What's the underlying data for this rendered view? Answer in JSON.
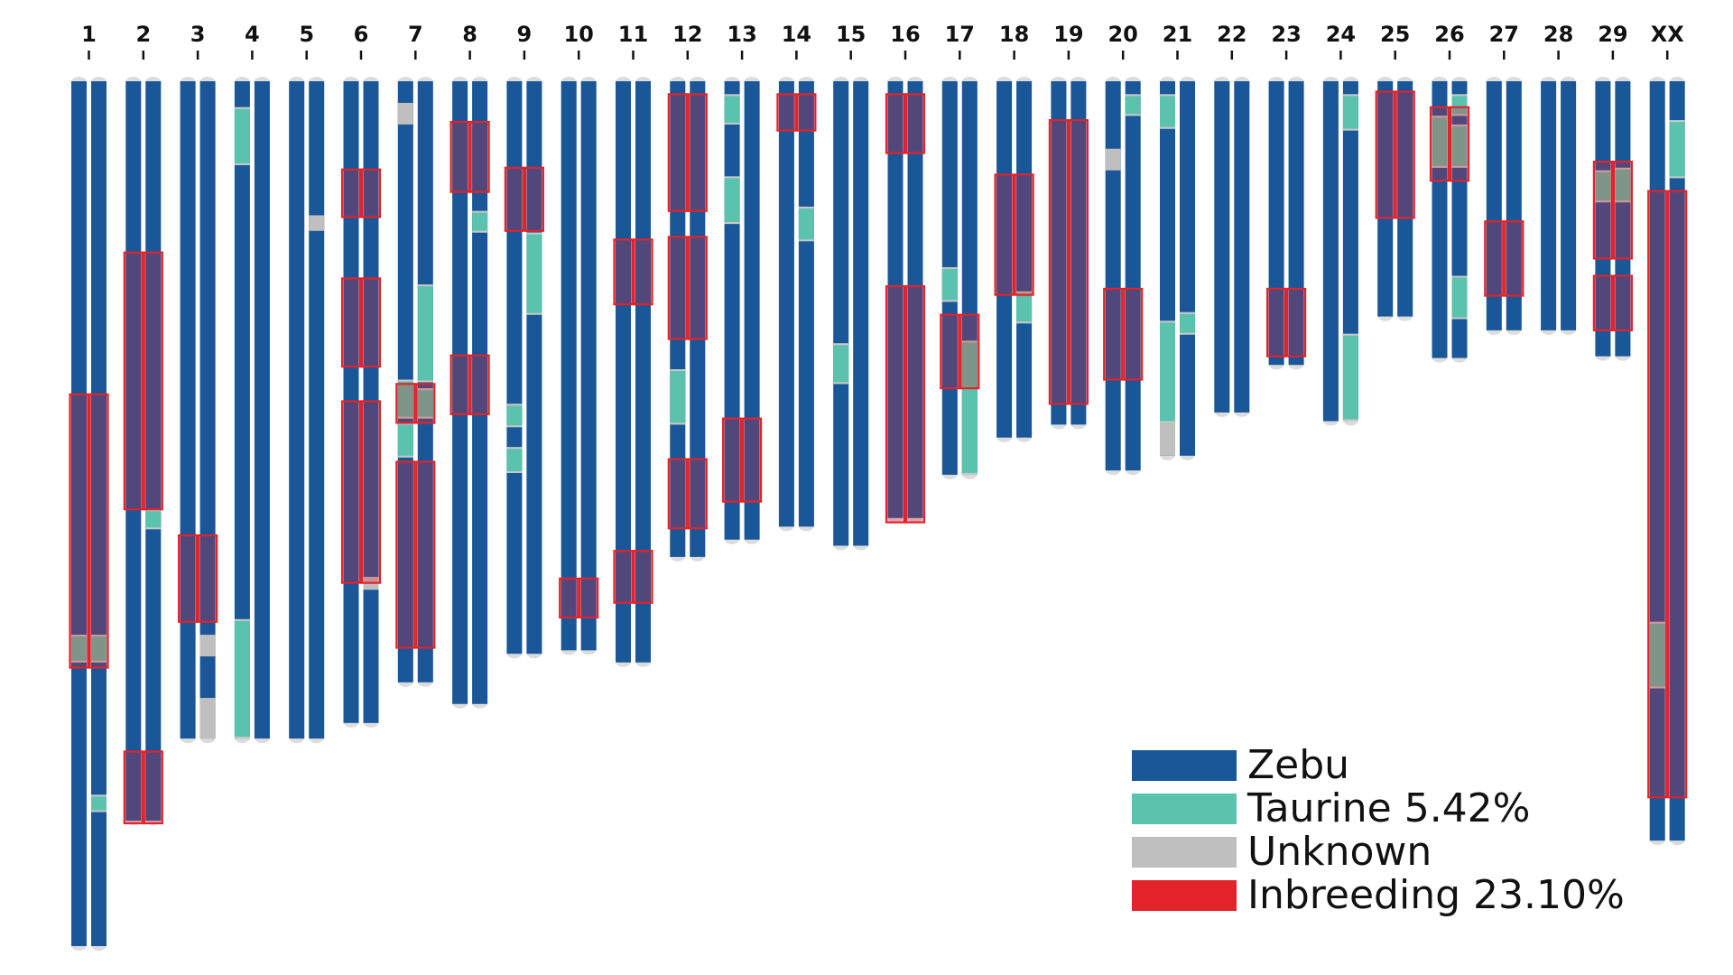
{
  "chart_data": {
    "type": "karyogram",
    "title": "",
    "units": "fraction of longest chromosome (0 = top, 1 = bottom)",
    "colors": {
      "zebu": "#1a5799",
      "taurine": "#5bc2ad",
      "unknown": "#bfbfbf",
      "inbreeding": "#e3222a",
      "cap": "#dcdcdc"
    },
    "legend": [
      {
        "key": "zebu",
        "label": "Zebu"
      },
      {
        "key": "taurine",
        "label": "Taurine 5.42%"
      },
      {
        "key": "unknown",
        "label": "Unknown"
      },
      {
        "key": "inbreeding",
        "label": "Inbreeding 23.10%"
      }
    ],
    "chromosomes": [
      {
        "label": "1",
        "length": 1.0,
        "hap": [
          [
            {
              "s": 0.64,
              "e": 0.672,
              "t": "taurine"
            }
          ],
          [
            {
              "s": 0.64,
              "e": 0.672,
              "t": "taurine"
            },
            {
              "s": 0.825,
              "e": 0.845,
              "t": "taurine"
            }
          ]
        ],
        "roh": [
          [
            0.362,
            0.678
          ]
        ]
      },
      {
        "label": "2",
        "length": 0.855,
        "hap": [
          [],
          [
            {
              "s": 0.495,
              "e": 0.518,
              "t": "taurine"
            }
          ]
        ],
        "roh": [
          [
            0.198,
            0.495
          ],
          [
            0.775,
            0.858
          ]
        ]
      },
      {
        "label": "3",
        "length": 0.76,
        "hap": [
          [],
          [
            {
              "s": 0.64,
              "e": 0.665,
              "t": "unknown"
            },
            {
              "s": 0.713,
              "e": 0.76,
              "t": "unknown"
            }
          ]
        ],
        "roh": [
          [
            0.525,
            0.625
          ]
        ]
      },
      {
        "label": "4",
        "length": 0.76,
        "hap": [
          [
            {
              "s": 0.03,
              "e": 0.097,
              "t": "taurine"
            },
            {
              "s": 0.622,
              "e": 0.76,
              "t": "taurine"
            }
          ],
          []
        ],
        "roh": []
      },
      {
        "label": "5",
        "length": 0.76,
        "hap": [
          [],
          [
            {
              "s": 0.155,
              "e": 0.173,
              "t": "unknown"
            }
          ]
        ],
        "roh": []
      },
      {
        "label": "6",
        "length": 0.742,
        "hap": [
          [],
          [
            {
              "s": 0.573,
              "e": 0.588,
              "t": "unknown"
            }
          ]
        ],
        "roh": [
          [
            0.102,
            0.157
          ],
          [
            0.228,
            0.33
          ],
          [
            0.37,
            0.58
          ]
        ]
      },
      {
        "label": "7",
        "length": 0.695,
        "hap": [
          [
            {
              "s": 0.025,
              "e": 0.05,
              "t": "unknown"
            },
            {
              "s": 0.345,
              "e": 0.39,
              "t": "taurine"
            },
            {
              "s": 0.395,
              "e": 0.435,
              "t": "taurine"
            }
          ],
          [
            {
              "s": 0.235,
              "e": 0.348,
              "t": "taurine"
            },
            {
              "s": 0.355,
              "e": 0.39,
              "t": "taurine"
            }
          ]
        ],
        "roh": [
          [
            0.35,
            0.395
          ],
          [
            0.44,
            0.655
          ]
        ]
      },
      {
        "label": "8",
        "length": 0.72,
        "hap": [
          [],
          [
            {
              "s": 0.15,
              "e": 0.175,
              "t": "taurine"
            }
          ]
        ],
        "roh": [
          [
            0.047,
            0.128
          ],
          [
            0.317,
            0.385
          ]
        ]
      },
      {
        "label": "9",
        "length": 0.662,
        "hap": [
          [
            {
              "s": 0.373,
              "e": 0.4,
              "t": "taurine"
            },
            {
              "s": 0.423,
              "e": 0.453,
              "t": "taurine"
            }
          ],
          [
            {
              "s": 0.175,
              "e": 0.27,
              "t": "taurine"
            }
          ]
        ],
        "roh": [
          [
            0.1,
            0.173
          ]
        ]
      },
      {
        "label": "10",
        "length": 0.658,
        "hap": [
          [],
          []
        ],
        "roh": [
          [
            0.575,
            0.62
          ]
        ]
      },
      {
        "label": "11",
        "length": 0.672,
        "hap": [
          [],
          []
        ],
        "roh": [
          [
            0.183,
            0.258
          ],
          [
            0.543,
            0.603
          ]
        ]
      },
      {
        "label": "12",
        "length": 0.55,
        "hap": [
          [
            {
              "s": 0.333,
              "e": 0.397,
              "t": "taurine"
            }
          ],
          []
        ],
        "roh": [
          [
            0.015,
            0.15
          ],
          [
            0.18,
            0.298
          ],
          [
            0.437,
            0.517
          ]
        ]
      },
      {
        "label": "13",
        "length": 0.53,
        "hap": [
          [
            {
              "s": 0.015,
              "e": 0.05,
              "t": "taurine"
            },
            {
              "s": 0.11,
              "e": 0.165,
              "t": "taurine"
            }
          ],
          []
        ],
        "roh": [
          [
            0.39,
            0.486
          ]
        ]
      },
      {
        "label": "14",
        "length": 0.515,
        "hap": [
          [],
          [
            {
              "s": 0.145,
              "e": 0.185,
              "t": "taurine"
            }
          ]
        ],
        "roh": [
          [
            0.015,
            0.057
          ]
        ]
      },
      {
        "label": "15",
        "length": 0.537,
        "hap": [
          [
            {
              "s": 0.303,
              "e": 0.35,
              "t": "taurine"
            }
          ],
          []
        ],
        "roh": []
      },
      {
        "label": "16",
        "length": 0.505,
        "hap": [
          [],
          []
        ],
        "roh": [
          [
            0.015,
            0.083
          ],
          [
            0.237,
            0.51
          ]
        ]
      },
      {
        "label": "17",
        "length": 0.455,
        "hap": [
          [
            {
              "s": 0.215,
              "e": 0.255,
              "t": "taurine"
            }
          ],
          [
            {
              "s": 0.3,
              "e": 0.455,
              "t": "taurine"
            }
          ]
        ],
        "roh": [
          [
            0.27,
            0.355
          ]
        ]
      },
      {
        "label": "18",
        "length": 0.412,
        "hap": [
          [],
          [
            {
              "s": 0.243,
              "e": 0.28,
              "t": "taurine"
            }
          ]
        ],
        "roh": [
          [
            0.108,
            0.247
          ]
        ]
      },
      {
        "label": "19",
        "length": 0.397,
        "hap": [
          [],
          []
        ],
        "roh": [
          [
            0.045,
            0.373
          ]
        ]
      },
      {
        "label": "20",
        "length": 0.45,
        "hap": [
          [
            {
              "s": 0.078,
              "e": 0.103,
              "t": "unknown"
            }
          ],
          [
            {
              "s": 0.015,
              "e": 0.04,
              "t": "taurine"
            }
          ]
        ],
        "roh": [
          [
            0.24,
            0.345
          ]
        ]
      },
      {
        "label": "21",
        "length": 0.433,
        "hap": [
          [
            {
              "s": 0.015,
              "e": 0.055,
              "t": "taurine"
            },
            {
              "s": 0.277,
              "e": 0.395,
              "t": "taurine"
            },
            {
              "s": 0.395,
              "e": 0.433,
              "t": "unknown"
            }
          ],
          [
            {
              "s": 0.267,
              "e": 0.293,
              "t": "taurine"
            }
          ]
        ],
        "roh": []
      },
      {
        "label": "22",
        "length": 0.383,
        "hap": [
          [],
          []
        ],
        "roh": []
      },
      {
        "label": "23",
        "length": 0.328,
        "hap": [
          [],
          []
        ],
        "roh": [
          [
            0.24,
            0.318
          ]
        ]
      },
      {
        "label": "24",
        "length": 0.393,
        "hap": [
          [],
          [
            {
              "s": 0.015,
              "e": 0.057,
              "t": "taurine"
            },
            {
              "s": 0.292,
              "e": 0.393,
              "t": "taurine"
            }
          ]
        ],
        "roh": []
      },
      {
        "label": "25",
        "length": 0.272,
        "hap": [
          [],
          []
        ],
        "roh": [
          [
            0.012,
            0.158
          ]
        ]
      },
      {
        "label": "26",
        "length": 0.32,
        "hap": [
          [
            {
              "s": 0.04,
              "e": 0.1,
              "t": "taurine"
            }
          ],
          [
            {
              "s": 0.015,
              "e": 0.04,
              "t": "taurine"
            },
            {
              "s": 0.05,
              "e": 0.1,
              "t": "taurine"
            },
            {
              "s": 0.225,
              "e": 0.275,
              "t": "taurine"
            }
          ]
        ],
        "roh": [
          [
            0.03,
            0.115
          ]
        ]
      },
      {
        "label": "27",
        "length": 0.288,
        "hap": [
          [],
          []
        ],
        "roh": [
          [
            0.162,
            0.248
          ]
        ]
      },
      {
        "label": "28",
        "length": 0.288,
        "hap": [
          [],
          []
        ],
        "roh": []
      },
      {
        "label": "29",
        "length": 0.318,
        "hap": [
          [
            {
              "s": 0.103,
              "e": 0.14,
              "t": "taurine"
            }
          ],
          [
            {
              "s": 0.1,
              "e": 0.14,
              "t": "taurine"
            }
          ]
        ],
        "roh": [
          [
            0.093,
            0.205
          ],
          [
            0.225,
            0.288
          ]
        ]
      },
      {
        "label": "XX",
        "length": 0.878,
        "hap": [
          [
            {
              "s": 0.625,
              "e": 0.702,
              "t": "taurine"
            }
          ],
          [
            {
              "s": 0.045,
              "e": 0.112,
              "t": "taurine"
            }
          ]
        ],
        "roh": [
          [
            0.127,
            0.828
          ]
        ]
      }
    ]
  }
}
